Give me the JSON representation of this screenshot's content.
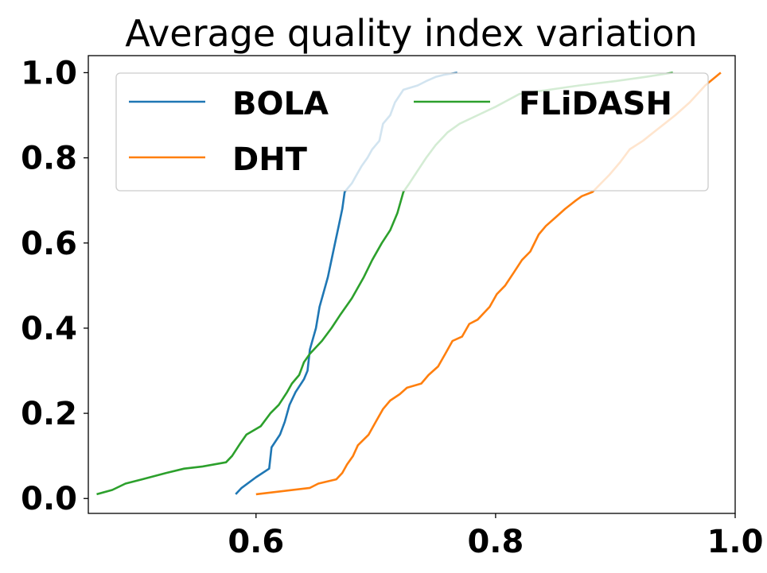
{
  "chart_data": {
    "type": "line",
    "title": "Average quality index variation",
    "xlabel": "",
    "ylabel": "",
    "xlim": [
      0.46,
      1.0
    ],
    "ylim": [
      -0.035,
      1.04
    ],
    "xticks": [
      0.6,
      0.8,
      1.0
    ],
    "xtick_labels": [
      "0.6",
      "0.8",
      "1.0"
    ],
    "yticks": [
      0.0,
      0.2,
      0.4,
      0.6,
      0.8,
      1.0
    ],
    "ytick_labels": [
      "0.0",
      "0.2",
      "0.4",
      "0.6",
      "0.8",
      "1.0"
    ],
    "grid": false,
    "legend_position": "upper center",
    "series": [
      {
        "name": "BOLA",
        "color": "#1f77b4",
        "x": [
          0.583,
          0.588,
          0.6,
          0.611,
          0.613,
          0.62,
          0.624,
          0.628,
          0.633,
          0.64,
          0.643,
          0.645,
          0.65,
          0.653,
          0.656,
          0.66,
          0.663,
          0.666,
          0.669,
          0.672,
          0.674,
          0.677,
          0.68,
          0.684,
          0.688,
          0.693,
          0.697,
          0.703,
          0.706,
          0.712,
          0.716,
          0.723,
          0.735,
          0.742,
          0.75,
          0.757,
          0.768
        ],
        "y": [
          0.01,
          0.025,
          0.05,
          0.07,
          0.12,
          0.15,
          0.18,
          0.22,
          0.25,
          0.28,
          0.3,
          0.35,
          0.4,
          0.45,
          0.48,
          0.52,
          0.56,
          0.6,
          0.64,
          0.68,
          0.72,
          0.73,
          0.74,
          0.76,
          0.78,
          0.8,
          0.82,
          0.84,
          0.88,
          0.9,
          0.93,
          0.96,
          0.97,
          0.98,
          0.99,
          0.995,
          1.0
        ]
      },
      {
        "name": "DHT",
        "color": "#ff7f0e",
        "x": [
          0.6,
          0.645,
          0.652,
          0.667,
          0.672,
          0.676,
          0.681,
          0.685,
          0.694,
          0.7,
          0.706,
          0.712,
          0.72,
          0.726,
          0.738,
          0.744,
          0.752,
          0.758,
          0.764,
          0.772,
          0.778,
          0.785,
          0.795,
          0.801,
          0.808,
          0.815,
          0.822,
          0.829,
          0.836,
          0.842,
          0.85,
          0.858,
          0.867,
          0.872,
          0.881,
          0.888,
          0.895,
          0.904,
          0.912,
          0.923,
          0.932,
          0.941,
          0.95,
          0.962,
          0.975,
          0.988
        ],
        "y": [
          0.01,
          0.025,
          0.035,
          0.045,
          0.06,
          0.08,
          0.1,
          0.125,
          0.15,
          0.18,
          0.21,
          0.23,
          0.245,
          0.26,
          0.27,
          0.29,
          0.31,
          0.34,
          0.37,
          0.38,
          0.41,
          0.42,
          0.45,
          0.48,
          0.5,
          0.53,
          0.56,
          0.58,
          0.62,
          0.64,
          0.66,
          0.68,
          0.7,
          0.71,
          0.72,
          0.74,
          0.76,
          0.79,
          0.82,
          0.84,
          0.86,
          0.88,
          0.9,
          0.93,
          0.97,
          1.0
        ]
      },
      {
        "name": "FLiDASH",
        "color": "#2ca02c",
        "x": [
          0.467,
          0.48,
          0.491,
          0.505,
          0.525,
          0.54,
          0.555,
          0.575,
          0.58,
          0.587,
          0.592,
          0.604,
          0.612,
          0.619,
          0.626,
          0.63,
          0.636,
          0.64,
          0.645,
          0.655,
          0.663,
          0.67,
          0.68,
          0.69,
          0.697,
          0.705,
          0.712,
          0.718,
          0.723,
          0.728,
          0.735,
          0.742,
          0.75,
          0.76,
          0.77,
          0.785,
          0.8,
          0.82,
          0.845,
          0.87,
          0.9,
          0.925,
          0.948
        ],
        "y": [
          0.01,
          0.02,
          0.035,
          0.045,
          0.06,
          0.07,
          0.075,
          0.085,
          0.1,
          0.13,
          0.15,
          0.17,
          0.2,
          0.22,
          0.25,
          0.27,
          0.29,
          0.32,
          0.34,
          0.37,
          0.4,
          0.43,
          0.47,
          0.52,
          0.56,
          0.6,
          0.63,
          0.67,
          0.72,
          0.74,
          0.77,
          0.8,
          0.83,
          0.86,
          0.88,
          0.9,
          0.92,
          0.95,
          0.96,
          0.97,
          0.98,
          0.99,
          1.0
        ]
      }
    ]
  }
}
